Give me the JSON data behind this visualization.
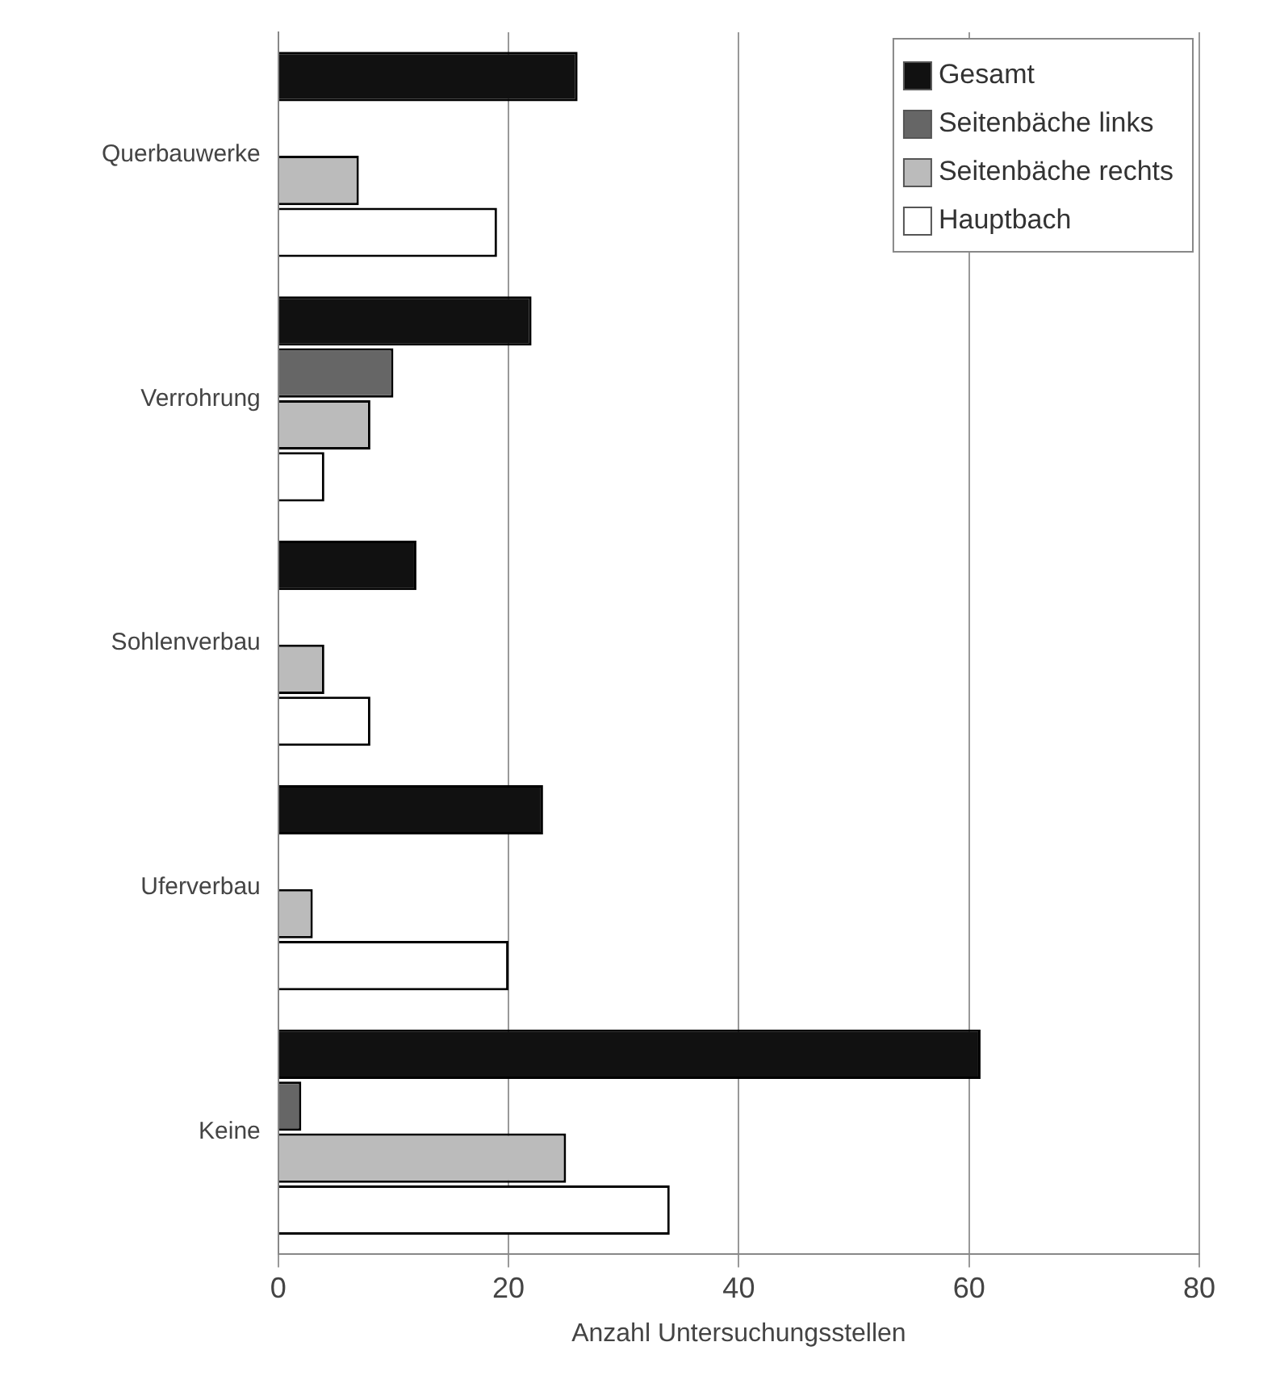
{
  "chart_data": {
    "type": "bar",
    "orientation": "horizontal",
    "xlabel": "Anzahl Untersuchungsstellen",
    "categories": [
      "Querbauwerke",
      "Verrohrung",
      "Sohlenverbau",
      "Uferverbau",
      "Keine"
    ],
    "series": [
      {
        "name": "Gesamt",
        "color": "#111111",
        "values": [
          26,
          22,
          12,
          23,
          61
        ]
      },
      {
        "name": "Seitenbäche links",
        "color": "#666666",
        "values": [
          0,
          10,
          0,
          0,
          2
        ]
      },
      {
        "name": "Seitenbäche rechts",
        "color": "#bbbbbb",
        "values": [
          7,
          8,
          4,
          3,
          25
        ]
      },
      {
        "name": "Hauptbach",
        "color": "#ffffff",
        "values": [
          19,
          4,
          8,
          20,
          34
        ]
      }
    ],
    "xlim": [
      0,
      80
    ],
    "xticks": [
      0,
      20,
      40,
      60,
      80
    ],
    "grid": "x",
    "legend": "top right"
  }
}
